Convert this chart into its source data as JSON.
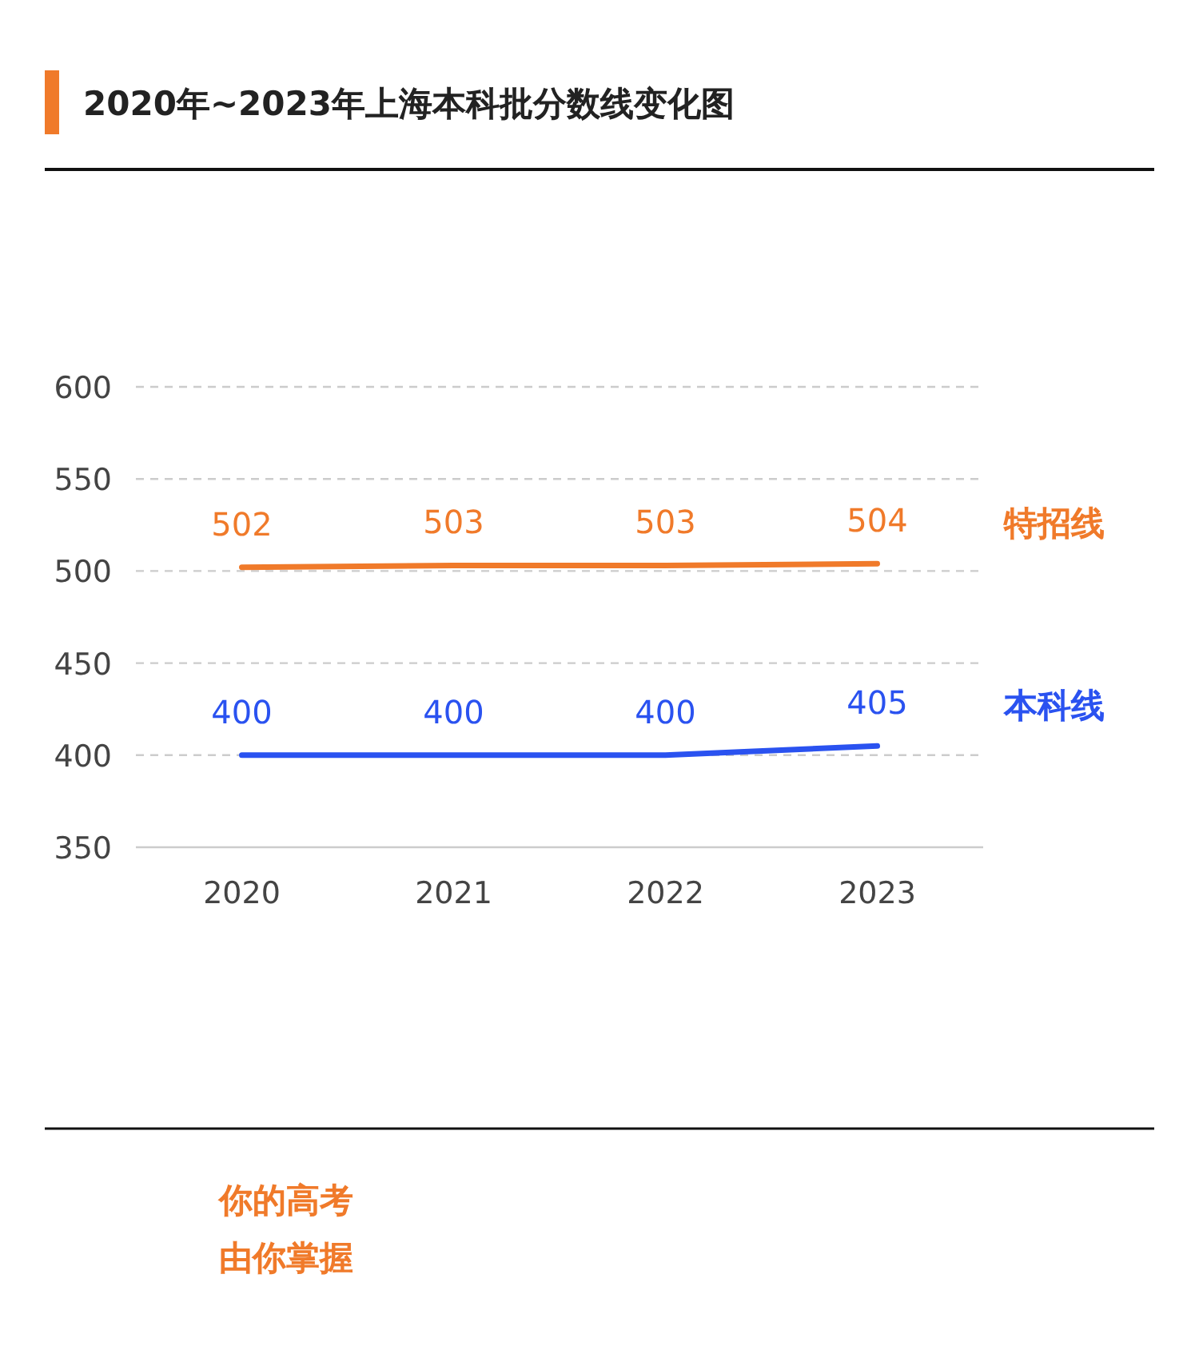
{
  "chart_data": {
    "type": "line",
    "title": "2020年~2023年上海本科批分数线变化图",
    "categories": [
      "2020",
      "2021",
      "2022",
      "2023"
    ],
    "series": [
      {
        "name": "特招线",
        "color": "#f07a2a",
        "values": [
          502,
          503,
          503,
          504
        ]
      },
      {
        "name": "本科线",
        "color": "#2a52f0",
        "values": [
          400,
          400,
          400,
          405
        ]
      }
    ],
    "ylim": [
      350,
      600
    ],
    "yticks": [
      350,
      400,
      450,
      500,
      550,
      600
    ],
    "grid": "y",
    "data_labels": true,
    "annotations": [
      "你的高考",
      "由你掌握"
    ]
  }
}
